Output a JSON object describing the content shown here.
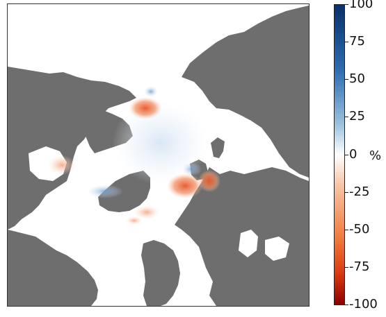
{
  "colorbar": {
    "unit": "%",
    "min": -100,
    "max": 100,
    "ticks": [
      {
        "value": 100,
        "label": "100"
      },
      {
        "value": 75,
        "label": "75"
      },
      {
        "value": 50,
        "label": "50"
      },
      {
        "value": 25,
        "label": "25"
      },
      {
        "value": 0,
        "label": "0"
      },
      {
        "value": -25,
        "label": "-25"
      },
      {
        "value": -50,
        "label": "-50"
      },
      {
        "value": -75,
        "label": "-75"
      },
      {
        "value": -100,
        "label": "-100"
      }
    ],
    "colors": {
      "max": "#08306b",
      "mid": "#ffffff",
      "min": "#8b0000"
    }
  },
  "map": {
    "land_color": "#6e6e6e",
    "ocean_color": "#ffffff",
    "projection": "north-polar-stereographic"
  }
}
